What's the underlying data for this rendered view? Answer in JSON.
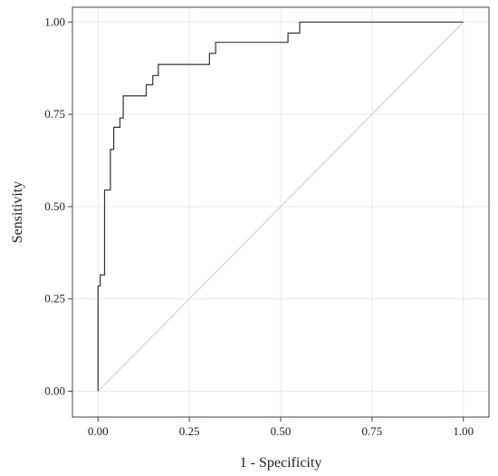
{
  "chart_data": {
    "type": "line",
    "title": "",
    "xlabel": "1 - Specificity",
    "ylabel": "Sensitivity",
    "xlim": [
      -0.07,
      1.07
    ],
    "ylim": [
      -0.07,
      1.04
    ],
    "x_ticks": [
      0.0,
      0.25,
      0.5,
      0.75,
      1.0
    ],
    "x_tick_labels": [
      "0.00",
      "0.25",
      "0.50",
      "0.75",
      "1.00"
    ],
    "y_ticks": [
      0.0,
      0.25,
      0.5,
      0.75,
      1.0
    ],
    "y_tick_labels": [
      "0.00",
      "0.25",
      "0.50",
      "0.75",
      "1.00"
    ],
    "grid": true,
    "legend": "none",
    "colors": {
      "curve": "#333333",
      "diagonal": "#cccccc",
      "grid": "#ececec",
      "border": "#444444"
    },
    "series": [
      {
        "type": "step",
        "x": [
          0.0,
          0.0,
          0.006,
          0.006,
          0.018,
          0.018,
          0.034,
          0.034,
          0.043,
          0.043,
          0.06,
          0.06,
          0.069,
          0.069,
          0.132,
          0.132,
          0.15,
          0.15,
          0.165,
          0.165,
          0.305,
          0.305,
          0.322,
          0.322,
          0.52,
          0.52,
          0.552,
          0.552,
          1.0
        ],
        "y": [
          0.0,
          0.285,
          0.285,
          0.315,
          0.315,
          0.545,
          0.545,
          0.655,
          0.655,
          0.715,
          0.715,
          0.74,
          0.74,
          0.8,
          0.8,
          0.83,
          0.83,
          0.855,
          0.855,
          0.885,
          0.885,
          0.915,
          0.915,
          0.945,
          0.945,
          0.97,
          0.97,
          1.0,
          1.0
        ]
      },
      {
        "type": "reference",
        "x": [
          0,
          1
        ],
        "y": [
          0,
          1
        ]
      }
    ]
  }
}
